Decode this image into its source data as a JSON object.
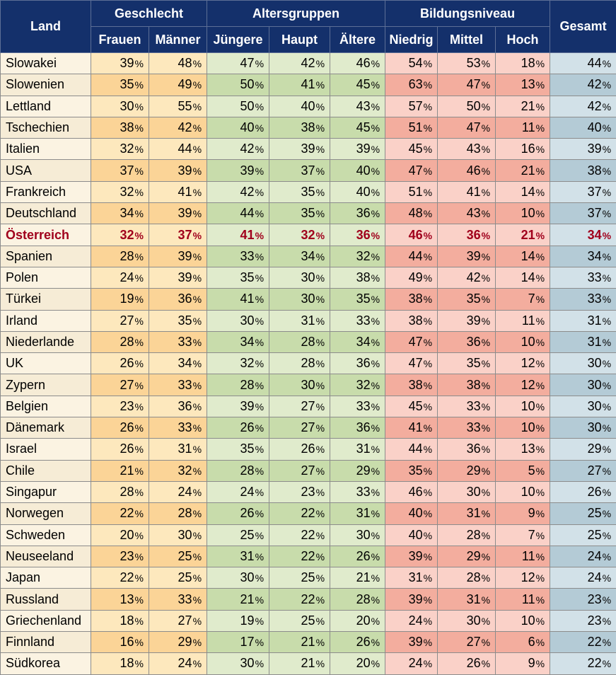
{
  "chart_data": {
    "type": "table",
    "header": {
      "land": "Land",
      "groups": [
        {
          "label": "Geschlecht",
          "cols": [
            "Frauen",
            "Männer"
          ]
        },
        {
          "label": "Altersgruppen",
          "cols": [
            "Jüngere",
            "Haupt",
            "Ältere"
          ]
        },
        {
          "label": "Bildungsniveau",
          "cols": [
            "Niedrig",
            "Mittel",
            "Hoch"
          ]
        }
      ],
      "gesamt": "Gesamt"
    },
    "unit": "%",
    "highlight_row": "Österreich",
    "rows": [
      {
        "land": "Slowakei",
        "values": [
          39,
          48,
          47,
          42,
          46,
          54,
          53,
          18,
          44
        ]
      },
      {
        "land": "Slowenien",
        "values": [
          35,
          49,
          50,
          41,
          45,
          63,
          47,
          13,
          42
        ]
      },
      {
        "land": "Lettland",
        "values": [
          30,
          55,
          50,
          40,
          43,
          57,
          50,
          21,
          42
        ]
      },
      {
        "land": "Tschechien",
        "values": [
          38,
          42,
          40,
          38,
          45,
          51,
          47,
          11,
          40
        ]
      },
      {
        "land": "Italien",
        "values": [
          32,
          44,
          42,
          39,
          39,
          45,
          43,
          16,
          39
        ]
      },
      {
        "land": "USA",
        "values": [
          37,
          39,
          39,
          37,
          40,
          47,
          46,
          21,
          38
        ]
      },
      {
        "land": "Frankreich",
        "values": [
          32,
          41,
          42,
          35,
          40,
          51,
          41,
          14,
          37
        ]
      },
      {
        "land": "Deutschland",
        "values": [
          34,
          39,
          44,
          35,
          36,
          48,
          43,
          10,
          37
        ]
      },
      {
        "land": "Österreich",
        "values": [
          32,
          37,
          41,
          32,
          36,
          46,
          36,
          21,
          34
        ]
      },
      {
        "land": "Spanien",
        "values": [
          28,
          39,
          33,
          34,
          32,
          44,
          39,
          14,
          34
        ]
      },
      {
        "land": "Polen",
        "values": [
          24,
          39,
          35,
          30,
          38,
          49,
          42,
          14,
          33
        ]
      },
      {
        "land": "Türkei",
        "values": [
          19,
          36,
          41,
          30,
          35,
          38,
          35,
          7,
          33
        ]
      },
      {
        "land": "Irland",
        "values": [
          27,
          35,
          30,
          31,
          33,
          38,
          39,
          11,
          31
        ]
      },
      {
        "land": "Niederlande",
        "values": [
          28,
          33,
          34,
          28,
          34,
          47,
          36,
          10,
          31
        ]
      },
      {
        "land": "UK",
        "values": [
          26,
          34,
          32,
          28,
          36,
          47,
          35,
          12,
          30
        ]
      },
      {
        "land": "Zypern",
        "values": [
          27,
          33,
          28,
          30,
          32,
          38,
          38,
          12,
          30
        ]
      },
      {
        "land": "Belgien",
        "values": [
          23,
          36,
          39,
          27,
          33,
          45,
          33,
          10,
          30
        ]
      },
      {
        "land": "Dänemark",
        "values": [
          26,
          33,
          26,
          27,
          36,
          41,
          33,
          10,
          30
        ]
      },
      {
        "land": "Israel",
        "values": [
          26,
          31,
          35,
          26,
          31,
          44,
          36,
          13,
          29
        ]
      },
      {
        "land": "Chile",
        "values": [
          21,
          32,
          28,
          27,
          29,
          35,
          29,
          5,
          27
        ]
      },
      {
        "land": "Singapur",
        "values": [
          28,
          24,
          24,
          23,
          33,
          46,
          30,
          10,
          26
        ]
      },
      {
        "land": "Norwegen",
        "values": [
          22,
          28,
          26,
          22,
          31,
          40,
          31,
          9,
          25
        ]
      },
      {
        "land": "Schweden",
        "values": [
          20,
          30,
          25,
          22,
          30,
          40,
          28,
          7,
          25
        ]
      },
      {
        "land": "Neuseeland",
        "values": [
          23,
          25,
          31,
          22,
          26,
          39,
          29,
          11,
          24
        ]
      },
      {
        "land": "Japan",
        "values": [
          22,
          25,
          30,
          25,
          21,
          31,
          28,
          12,
          24
        ]
      },
      {
        "land": "Russland",
        "values": [
          13,
          33,
          21,
          22,
          28,
          39,
          31,
          11,
          23
        ]
      },
      {
        "land": "Griechenland",
        "values": [
          18,
          27,
          19,
          25,
          20,
          24,
          30,
          10,
          23
        ]
      },
      {
        "land": "Finnland",
        "values": [
          16,
          29,
          17,
          21,
          26,
          39,
          27,
          6,
          22
        ]
      },
      {
        "land": "Südkorea",
        "values": [
          18,
          24,
          30,
          21,
          20,
          24,
          26,
          9,
          22
        ]
      }
    ]
  },
  "colors": {
    "header_bg": "#14306b",
    "name_col": [
      "#fbf3e2",
      "#f6ecd6"
    ],
    "geschlecht": [
      "#fde8bd",
      "#fbd497"
    ],
    "altersgruppen": [
      "#e0ebcc",
      "#c8dcab"
    ],
    "bildungsniveau": [
      "#fad1c8",
      "#f3ad9e"
    ],
    "gesamt": [
      "#d2e1e8",
      "#b4cbd6"
    ],
    "highlight_text": "#a0001c"
  }
}
